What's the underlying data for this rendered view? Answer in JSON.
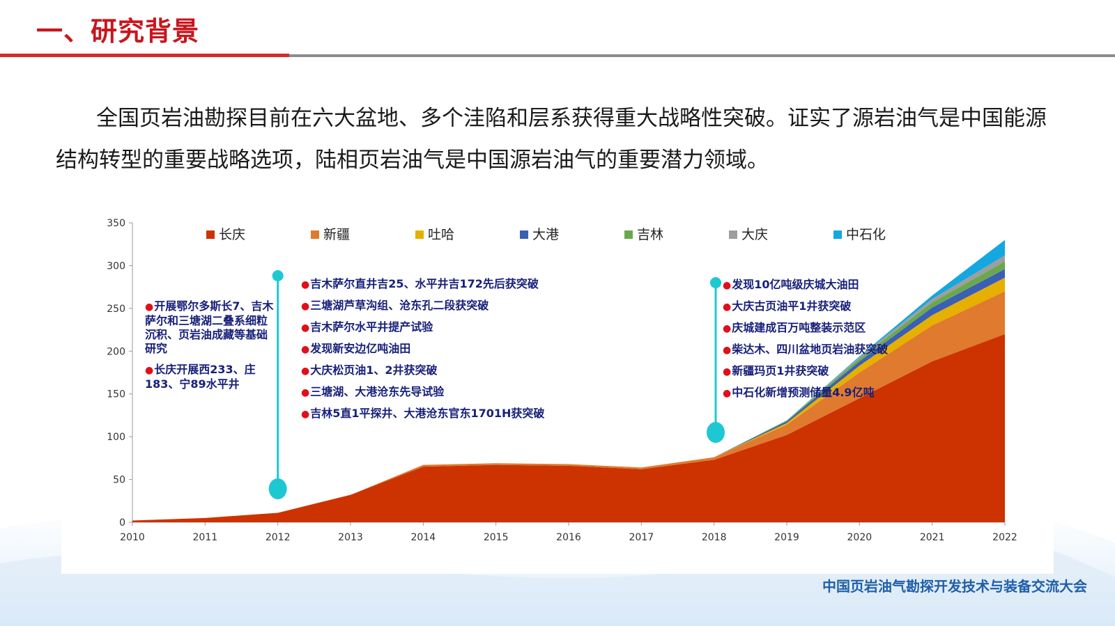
{
  "header": {
    "title": "一、研究背景"
  },
  "intro": {
    "text": "全国页岩油勘探目前在六大盆地、多个洼陷和层系获得重大战略性突破。证实了源岩油气是中国能源结构转型的重要战略选项，陆相页岩油气是中国源岩油气的重要潜力领域。"
  },
  "annotations": {
    "left": [
      "开展鄂尔多斯长7、吉木萨尔和三塘湖二叠系细粒沉积、页岩油成藏等基础研究",
      "长庆开展西233、庄183、宁89水平井"
    ],
    "mid": [
      "吉木萨尔直井吉25、水平井吉172先后获突破",
      "三塘湖芦草沟组、沧东孔二段获突破",
      "吉木萨尔水平井提产试验",
      "发现新安边亿吨油田",
      "大庆松页油1、2井获突破",
      "三塘湖、大港沧东先导试验",
      "吉林5直1平探井、大港沧东官东1701H获突破"
    ],
    "right": [
      "发现10亿吨级庆城大油田",
      "大庆古页油平1井获突破",
      "庆城建成百万吨整装示范区",
      "柴达木、四川盆地页岩油获突破",
      "新疆玛页1井获突破",
      "中石化新增预测储量4.9亿吨"
    ]
  },
  "chart_data": {
    "type": "area",
    "stacked": true,
    "categories": [
      "2010",
      "2011",
      "2012",
      "2013",
      "2014",
      "2015",
      "2016",
      "2017",
      "2018",
      "2019",
      "2020",
      "2021",
      "2022"
    ],
    "ylim": [
      0,
      350
    ],
    "yticks": [
      0,
      50,
      100,
      150,
      200,
      250,
      300,
      350
    ],
    "legend_position": "top",
    "series": [
      {
        "name": "长庆",
        "color": "#cc3300",
        "values": [
          2,
          5,
          11,
          32,
          65,
          67,
          66,
          62,
          73,
          102,
          145,
          188,
          220
        ]
      },
      {
        "name": "新疆",
        "color": "#e07a2e",
        "values": [
          0,
          0,
          0,
          0,
          2,
          2,
          2,
          2,
          3,
          12,
          30,
          42,
          50
        ]
      },
      {
        "name": "吐哈",
        "color": "#e6b000",
        "values": [
          0,
          0,
          0,
          0,
          0,
          0,
          0,
          0,
          0,
          2,
          8,
          12,
          16
        ]
      },
      {
        "name": "大港",
        "color": "#3a5fb4",
        "values": [
          0,
          0,
          0,
          0,
          0,
          0,
          0,
          0,
          0,
          2,
          5,
          9,
          10
        ]
      },
      {
        "name": "吉林",
        "color": "#6aa84f",
        "values": [
          0,
          0,
          0,
          0,
          0,
          0,
          0,
          0,
          0,
          1,
          3,
          6,
          9
        ]
      },
      {
        "name": "大庆",
        "color": "#9e9e9e",
        "values": [
          0,
          0,
          0,
          0,
          0,
          0,
          0,
          0,
          0,
          0,
          2,
          4,
          7
        ]
      },
      {
        "name": "中石化",
        "color": "#14a7e0",
        "values": [
          0,
          0,
          0,
          0,
          0,
          0,
          0,
          0,
          0,
          0,
          1,
          4,
          18
        ]
      }
    ]
  },
  "footer": {
    "text": "中国页岩油气勘探开发技术与装备交流大会"
  },
  "colors": {
    "title": "#c8161d",
    "marker": "#1ec8d2",
    "annotation_text": "#17207a",
    "bullet": "#e0101a"
  }
}
